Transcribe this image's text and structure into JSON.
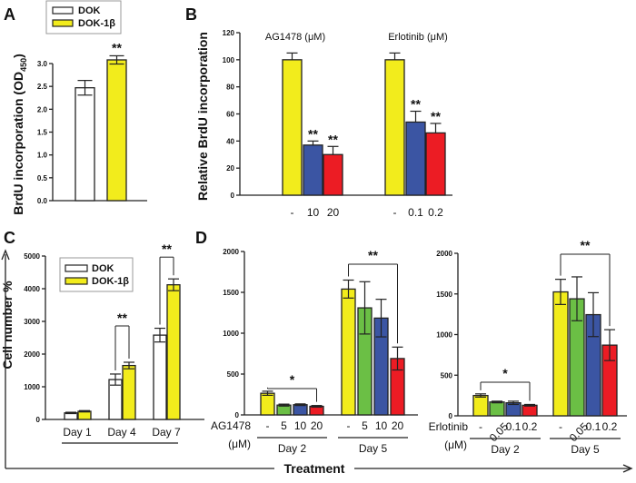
{
  "figure": {
    "panel_labels": [
      "A",
      "B",
      "C",
      "D"
    ],
    "colors": {
      "white": "#ffffff",
      "yellow": "#f2ec1c",
      "green": "#6bbf45",
      "blue": "#3b55a3",
      "red": "#ec1c24",
      "axis": "#222222"
    },
    "treatment_label": "Treatment"
  },
  "chart_data": [
    {
      "panel": "A",
      "type": "bar",
      "ylabel": "BrdU incorporation (OD450)",
      "ylabel_main": "BrdU incorporation (OD",
      "ylabel_sub": "450",
      "ylabel_close": ")",
      "ylim": [
        0,
        3.0
      ],
      "yticks": [
        "0.0",
        "0.5",
        "1.0",
        "1.5",
        "2.0",
        "2.5",
        "3.0"
      ],
      "ytick_values": [
        0,
        0.5,
        1.0,
        1.5,
        2.0,
        2.5,
        3.0
      ],
      "legend": {
        "position": "top-left",
        "entries": [
          "DOK",
          "DOK-1β"
        ]
      },
      "categories": [
        "DOK",
        "DOK-1β"
      ],
      "values": [
        2.47,
        3.08
      ],
      "errors": [
        0.16,
        0.09
      ],
      "bar_colors": [
        "white",
        "yellow"
      ],
      "significance": [
        "",
        "**"
      ]
    },
    {
      "panel": "B",
      "type": "bar",
      "ylabel": "Relative BrdU incorporation",
      "ylim": [
        0,
        120
      ],
      "yticks": [
        "0",
        "20",
        "40",
        "60",
        "80",
        "100",
        "120"
      ],
      "ytick_values": [
        0,
        20,
        40,
        60,
        80,
        100,
        120
      ],
      "groups": [
        {
          "header": "AG1478 (μM)",
          "categories": [
            "-",
            "10",
            "20"
          ],
          "values": [
            100,
            37,
            30
          ],
          "errors": [
            5,
            3,
            6
          ],
          "bar_colors": [
            "yellow",
            "blue",
            "red"
          ],
          "significance": [
            "",
            "**",
            "**"
          ]
        },
        {
          "header": "Erlotinib (μM)",
          "categories": [
            "-",
            "0.1",
            "0.2"
          ],
          "values": [
            100,
            54,
            46
          ],
          "errors": [
            5,
            8,
            7
          ],
          "bar_colors": [
            "yellow",
            "blue",
            "red"
          ],
          "significance": [
            "",
            "**",
            "**"
          ]
        }
      ]
    },
    {
      "panel": "C",
      "type": "bar",
      "ylabel": "Cell number %",
      "ylim": [
        0,
        5000
      ],
      "yticks": [
        "0",
        "1000",
        "2000",
        "3000",
        "4000",
        "5000"
      ],
      "ytick_values": [
        0,
        1000,
        2000,
        3000,
        4000,
        5000
      ],
      "legend": {
        "position": "top-left",
        "entries": [
          "DOK",
          "DOK-1β"
        ]
      },
      "categories": [
        "Day 1",
        "Day 4",
        "Day 7"
      ],
      "series": [
        {
          "name": "DOK",
          "color": "white",
          "values": [
            200,
            1220,
            2580
          ],
          "errors": [
            20,
            170,
            210
          ]
        },
        {
          "name": "DOK-1β",
          "color": "yellow",
          "values": [
            250,
            1650,
            4120
          ],
          "errors": [
            20,
            100,
            180
          ]
        }
      ],
      "significance": [
        "",
        "**",
        "**"
      ]
    },
    {
      "panel": "D-left",
      "type": "bar",
      "ylim": [
        0,
        2000
      ],
      "yticks": [
        "0",
        "500",
        "1000",
        "1500",
        "2000"
      ],
      "ytick_values": [
        0,
        500,
        1000,
        1500,
        2000
      ],
      "treatment_name": "AG1478",
      "treatment_unit": "(μM)",
      "groups": [
        {
          "label": "Day 2",
          "categories": [
            "-",
            "5",
            "10",
            "20"
          ],
          "values": [
            265,
            120,
            125,
            105
          ],
          "errors": [
            25,
            12,
            10,
            10
          ],
          "significance": "*"
        },
        {
          "label": "Day 5",
          "categories": [
            "-",
            "5",
            "10",
            "20"
          ],
          "values": [
            1540,
            1310,
            1185,
            690
          ],
          "errors": [
            110,
            320,
            230,
            140
          ],
          "significance": "**"
        }
      ],
      "bar_colors": [
        "yellow",
        "green",
        "blue",
        "red"
      ]
    },
    {
      "panel": "D-right",
      "type": "bar",
      "ylim": [
        0,
        2000
      ],
      "yticks": [
        "0",
        "500",
        "1000",
        "1500",
        "2000"
      ],
      "ytick_values": [
        0,
        500,
        1000,
        1500,
        2000
      ],
      "treatment_name": "Erlotinib",
      "treatment_unit": "(μM)",
      "groups": [
        {
          "label": "Day 2",
          "categories": [
            "-",
            "0.05",
            "0.1",
            "0.2"
          ],
          "values": [
            250,
            170,
            160,
            130
          ],
          "errors": [
            20,
            10,
            20,
            10
          ],
          "significance": "*"
        },
        {
          "label": "Day 5",
          "categories": [
            "-",
            "0.05",
            "0.1",
            "0.2"
          ],
          "values": [
            1525,
            1440,
            1245,
            870
          ],
          "errors": [
            155,
            270,
            270,
            190
          ],
          "significance": "**"
        }
      ],
      "bar_colors": [
        "yellow",
        "green",
        "blue",
        "red"
      ]
    }
  ]
}
